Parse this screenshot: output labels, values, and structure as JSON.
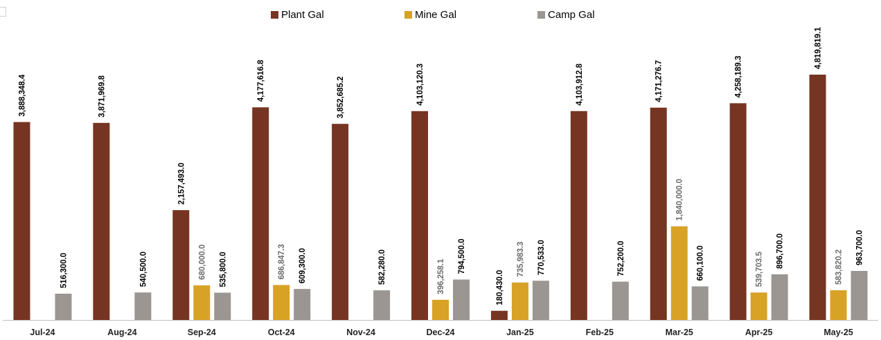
{
  "chart_data": {
    "type": "bar",
    "title": "",
    "xlabel": "",
    "ylabel": "",
    "ylim": [
      0,
      5200000
    ],
    "legend_position": "top-center",
    "grid": false,
    "categories": [
      "Jul-24",
      "Aug-24",
      "Sep-24",
      "Oct-24",
      "Nov-24",
      "Dec-24",
      "Jan-25",
      "Feb-25",
      "Mar-25",
      "Apr-25",
      "May-25"
    ],
    "series": [
      {
        "name": "Plant Gal",
        "color": "#763522",
        "label_color": "#000000",
        "values": [
          3888348.4,
          3871969.8,
          2157493.0,
          4177616.8,
          3852685.2,
          4103120.3,
          180430.0,
          4103912.8,
          4171276.7,
          4258189.3,
          4819819.1
        ],
        "labels": [
          "3,888,348.4",
          "3,871,969.8",
          "2,157,493.0",
          "4,177,616.8",
          "3,852,685.2",
          "4,103,120.3",
          "180,430.0",
          "4,103,912.8",
          "4,171,276.7",
          "4,258,189.3",
          "4,819,819.1"
        ]
      },
      {
        "name": "Mine Gal",
        "color": "#D8A227",
        "label_color": "#6b6b6b",
        "values": [
          null,
          null,
          680000.0,
          686847.3,
          null,
          396258.1,
          735983.3,
          null,
          1840000.0,
          539703.5,
          583820.2
        ],
        "labels": [
          null,
          null,
          "680,000.0",
          "686,847.3",
          null,
          "396,258.1",
          "735,983.3",
          null,
          "1,840,000.0",
          "539,703.5",
          "583,820.2"
        ]
      },
      {
        "name": "Camp Gal",
        "color": "#9B9692",
        "label_color": "#000000",
        "values": [
          516300.0,
          540500.0,
          535800.0,
          609300.0,
          582280.0,
          794500.0,
          770533.0,
          752200.0,
          660100.0,
          896700.0,
          963700.0
        ],
        "labels": [
          "516,300.0",
          "540,500.0",
          "535,800.0",
          "609,300.0",
          "582,280.0",
          "794,500.0",
          "770,533.0",
          "752,200.0",
          "660,100.0",
          "896,700.0",
          "963,700.0"
        ]
      }
    ]
  }
}
